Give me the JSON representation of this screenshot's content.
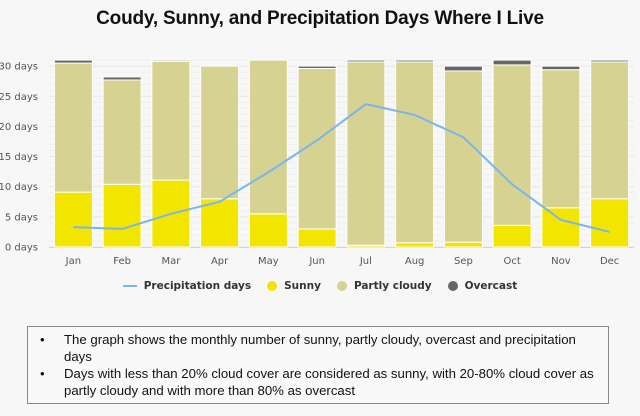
{
  "chart_data": {
    "type": "bar",
    "stacked": true,
    "title": "Coudy, Sunny, and Precipitation Days Where I Live",
    "xlabel": "",
    "ylabel": "",
    "ylim": [
      0,
      30
    ],
    "y_ticks": [
      0,
      5,
      10,
      15,
      20,
      25,
      30
    ],
    "y_tick_suffix": " days",
    "grid": true,
    "legend_position": "bottom",
    "categories": [
      "Jan",
      "Feb",
      "Mar",
      "Apr",
      "May",
      "Jun",
      "Jul",
      "Aug",
      "Sep",
      "Oct",
      "Nov",
      "Dec"
    ],
    "series": [
      {
        "name": "Sunny",
        "type": "bar",
        "color": "#f2e600",
        "values": [
          9.1,
          10.4,
          11.1,
          8.0,
          5.5,
          3.0,
          0.3,
          0.7,
          0.8,
          3.6,
          6.5,
          8.0
        ]
      },
      {
        "name": "Partly cloudy",
        "type": "bar",
        "color": "#d6d292",
        "values": [
          21.4,
          17.3,
          19.7,
          22.0,
          25.5,
          26.6,
          30.4,
          30.0,
          28.4,
          26.6,
          22.9,
          22.7
        ]
      },
      {
        "name": "Overcast",
        "type": "bar",
        "color": "#666666",
        "values": [
          0.5,
          0.5,
          0.2,
          0.0,
          0.0,
          0.4,
          0.3,
          0.3,
          0.8,
          0.8,
          0.6,
          0.3
        ]
      },
      {
        "name": "Precipitation days",
        "type": "line",
        "color": "#7cb5ec",
        "values": [
          3.3,
          3.0,
          5.5,
          7.5,
          12.4,
          17.7,
          23.7,
          21.9,
          18.2,
          10.4,
          4.5,
          2.5
        ]
      }
    ],
    "legend_order": [
      "Precipitation days",
      "Sunny",
      "Partly cloudy",
      "Overcast"
    ]
  },
  "notes": [
    "The graph shows the monthly number of sunny, partly cloudy, overcast and precipitation days",
    "Days with less than 20% cloud cover are considered as sunny, with 20-80% cloud cover as partly cloudy and with more than 80% as overcast"
  ]
}
